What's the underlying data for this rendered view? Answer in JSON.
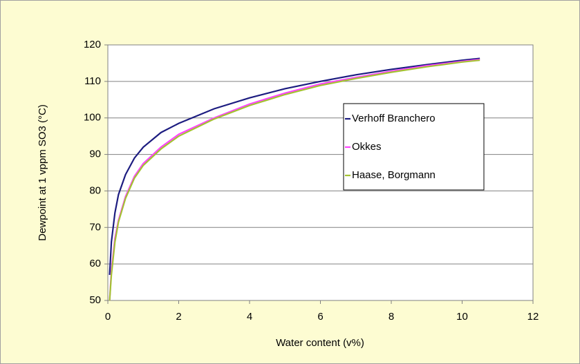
{
  "chart_data": {
    "type": "line",
    "xlabel": "Water content (v%)",
    "ylabel": "Dewpoint at 1 vppm SO3 (°C)",
    "x": [
      0.05,
      0.1,
      0.2,
      0.3,
      0.5,
      0.75,
      1,
      1.5,
      2,
      3,
      4,
      5,
      6,
      7,
      8,
      9,
      10,
      10.5
    ],
    "series": [
      {
        "name": "Verhoff Branchero",
        "color": "#1c1c80",
        "values": [
          57,
          66,
          74,
          79,
          84.5,
          89,
          92,
          96,
          98.5,
          102.5,
          105.5,
          108,
          110,
          111.8,
          113.3,
          114.6,
          115.8,
          116.3
        ]
      },
      {
        "name": "Okkes",
        "color": "#ff44ff",
        "values": [
          50,
          58,
          67,
          72,
          78.5,
          84,
          87.5,
          92,
          95.5,
          100,
          103.8,
          106.8,
          109.3,
          111.1,
          112.8,
          114.3,
          115.5,
          116
        ]
      },
      {
        "name": "Haase, Borgmann",
        "color": "#a4c232",
        "values": [
          50,
          57,
          66,
          71.5,
          78,
          83.5,
          87,
          91.5,
          95,
          99.7,
          103.4,
          106.4,
          108.9,
          110.8,
          112.5,
          114,
          115.3,
          115.8
        ]
      }
    ],
    "xlim": [
      0,
      12
    ],
    "xticks": [
      0,
      2,
      4,
      6,
      8,
      10,
      12
    ],
    "ylim": [
      50,
      120
    ],
    "yticks": [
      50,
      60,
      70,
      80,
      90,
      100,
      110,
      120
    ],
    "grid": true,
    "legend": "center right"
  }
}
